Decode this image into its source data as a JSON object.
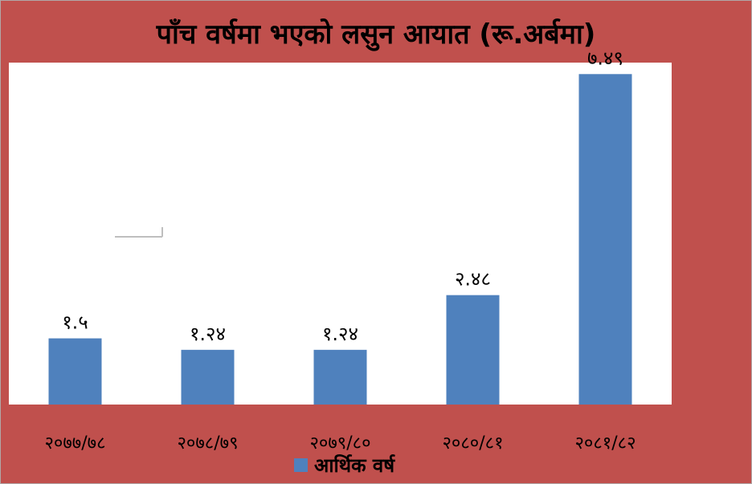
{
  "chart_data": {
    "type": "bar",
    "title": "पाँच वर्षमा भएको लसुन आयात (रू.अर्बमा)",
    "categories": [
      "२०७७/७८",
      "२०७८/७९",
      "२०७९/८०",
      "२०८०/८१",
      "२०८१/८२"
    ],
    "values": [
      1.5,
      1.24,
      1.24,
      2.48,
      7.49
    ],
    "data_labels": [
      "१.५",
      "१.२४",
      "१.२४",
      "२.४८",
      "७.४९"
    ],
    "series": [
      {
        "name": "आर्थिक वर्ष",
        "values": [
          1.5,
          1.24,
          1.24,
          2.48,
          7.49
        ]
      }
    ],
    "ylim": [
      0,
      7.75
    ],
    "grid": false,
    "legend": "bottom",
    "colors": {
      "bar": "#4f81bd",
      "background": "#c0504d",
      "plot": "#ffffff"
    }
  }
}
